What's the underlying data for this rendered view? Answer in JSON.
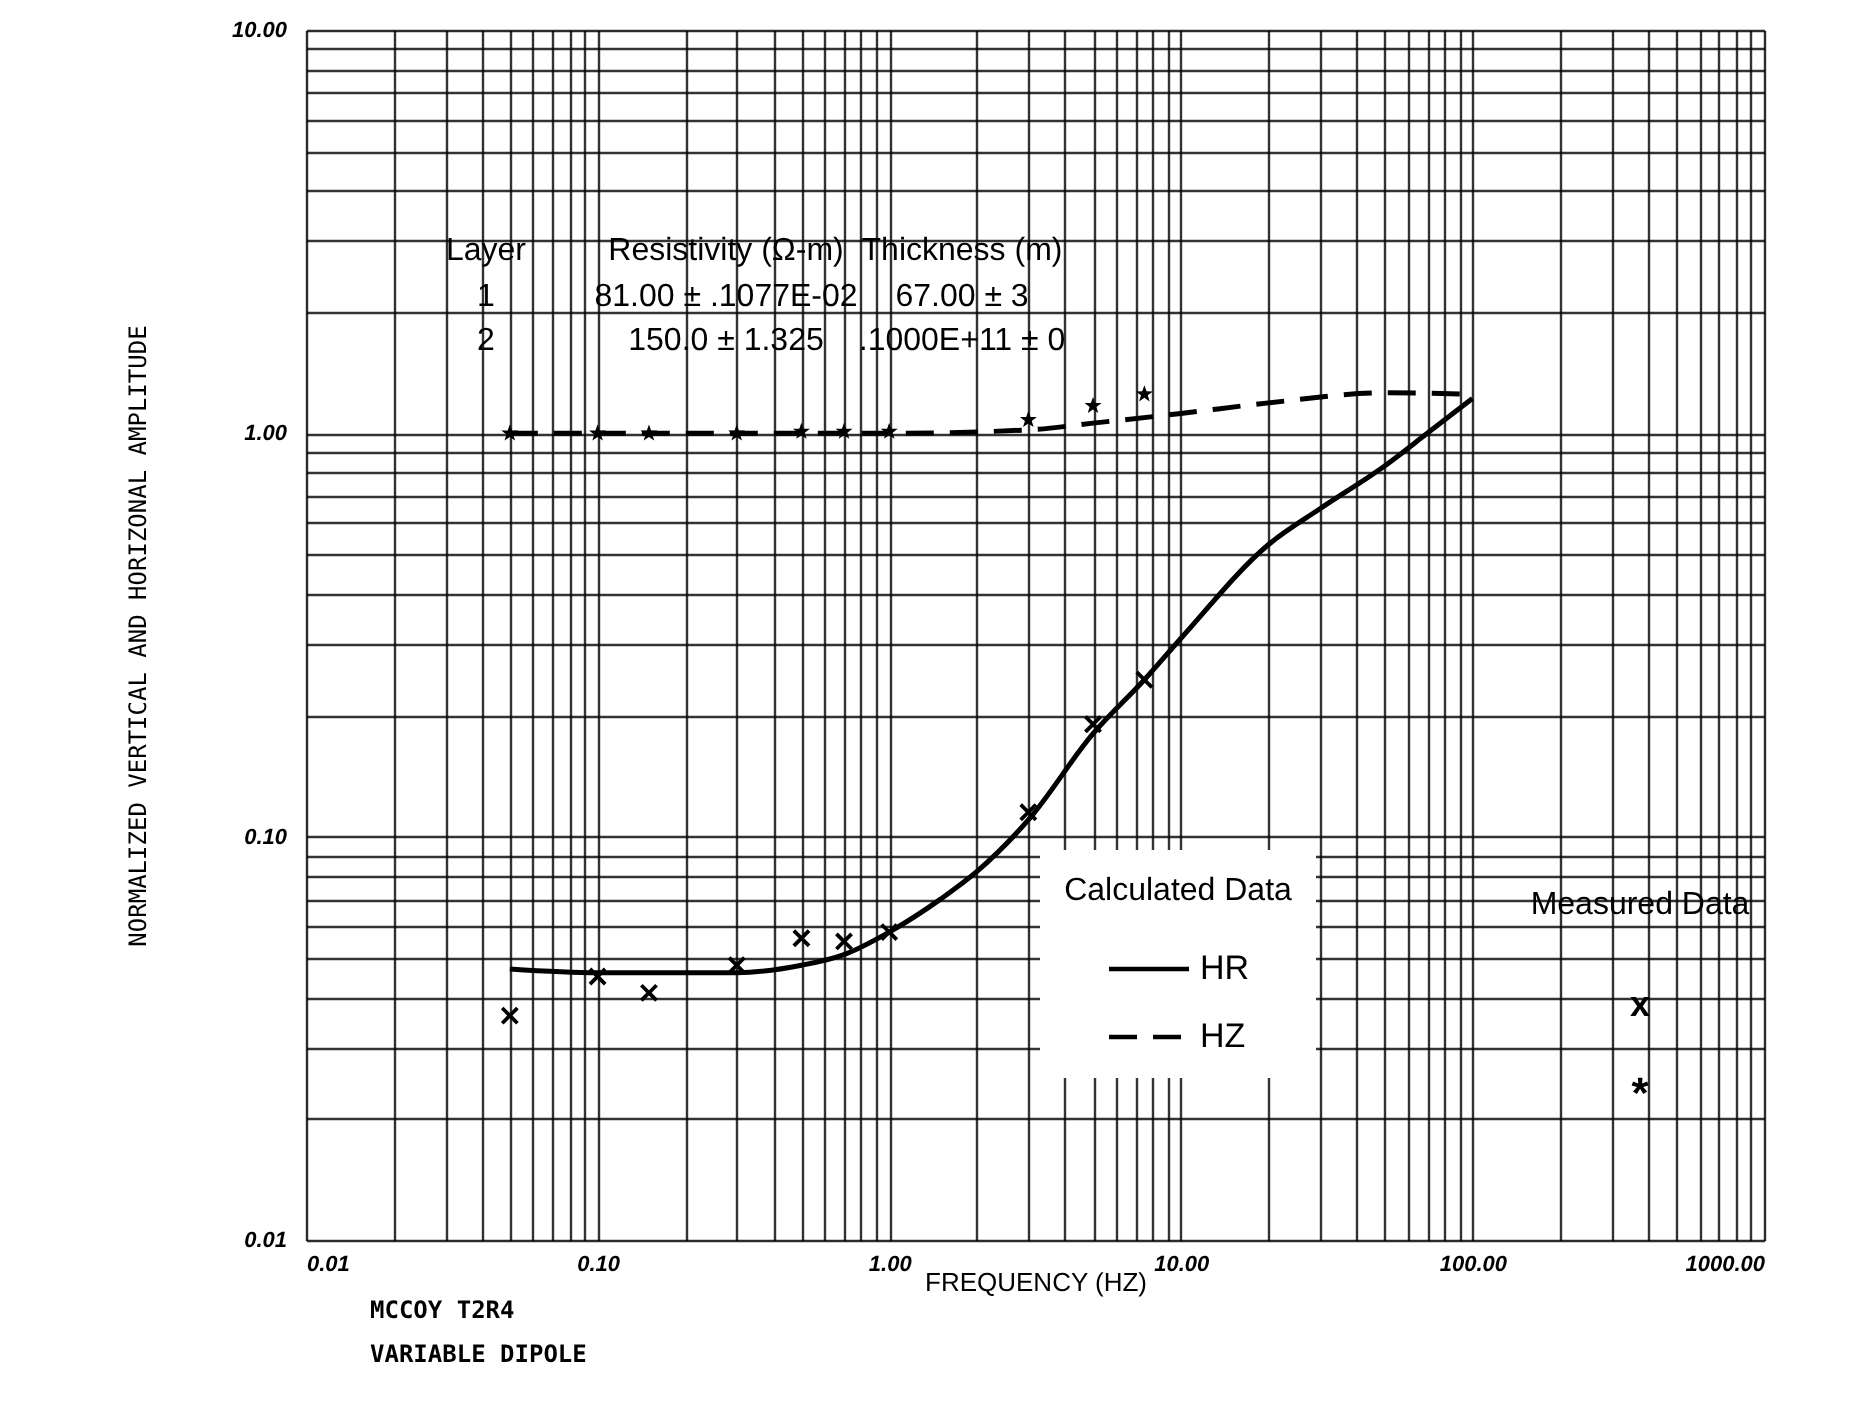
{
  "chart_data": {
    "type": "line",
    "xlabel": "FREQUENCY (HZ)",
    "ylabel": "NORMALIZED VERTICAL AND HORIZONAL AMPLITUDE",
    "legend_title": "Calculated Data",
    "log": "xy",
    "grid": true,
    "legend": "bottom right",
    "xlim": [
      0.01,
      1000
    ],
    "ylim": [
      0.01,
      10
    ],
    "xticks": [
      {
        "value": 0.01,
        "label": "0.01"
      },
      {
        "value": 0.02,
        "label": null
      },
      {
        "value": 0.03,
        "label": null
      },
      {
        "value": 0.04,
        "label": null
      },
      {
        "value": 0.05,
        "label": null
      },
      {
        "value": 0.06,
        "label": null
      },
      {
        "value": 0.07,
        "label": null
      },
      {
        "value": 0.08,
        "label": null
      },
      {
        "value": 0.09,
        "label": null
      },
      {
        "value": 0.1,
        "label": "0.10"
      },
      {
        "value": 0.2,
        "label": null
      },
      {
        "value": 0.3,
        "label": null
      },
      {
        "value": 0.4,
        "label": null
      },
      {
        "value": 0.5,
        "label": null
      },
      {
        "value": 0.6,
        "label": null
      },
      {
        "value": 0.7,
        "label": null
      },
      {
        "value": 0.8,
        "label": null
      },
      {
        "value": 0.9,
        "label": null
      },
      {
        "value": 1,
        "label": "1.00"
      },
      {
        "value": 2,
        "label": null
      },
      {
        "value": 3,
        "label": null
      },
      {
        "value": 4,
        "label": null
      },
      {
        "value": 5,
        "label": null
      },
      {
        "value": 6,
        "label": null
      },
      {
        "value": 7,
        "label": null
      },
      {
        "value": 8,
        "label": null
      },
      {
        "value": 9,
        "label": null
      },
      {
        "value": 10,
        "label": "10.00"
      },
      {
        "value": 20,
        "label": null
      },
      {
        "value": 30,
        "label": null
      },
      {
        "value": 40,
        "label": null
      },
      {
        "value": 50,
        "label": null
      },
      {
        "value": 60,
        "label": null
      },
      {
        "value": 70,
        "label": null
      },
      {
        "value": 80,
        "label": null
      },
      {
        "value": 90,
        "label": null
      },
      {
        "value": 100,
        "label": "100.00"
      },
      {
        "value": 200,
        "label": null
      },
      {
        "value": 300,
        "label": null
      },
      {
        "value": 400,
        "label": null
      },
      {
        "value": 500,
        "label": null
      },
      {
        "value": 600,
        "label": null
      },
      {
        "value": 700,
        "label": null
      },
      {
        "value": 800,
        "label": null
      },
      {
        "value": 900,
        "label": null
      },
      {
        "value": 1000,
        "label": "1000.00"
      }
    ],
    "yticks": [
      {
        "value": 0.01,
        "label": "0.01"
      },
      {
        "value": 0.02,
        "label": null
      },
      {
        "value": 0.03,
        "label": null
      },
      {
        "value": 0.04,
        "label": null
      },
      {
        "value": 0.05,
        "label": null
      },
      {
        "value": 0.06,
        "label": null
      },
      {
        "value": 0.07,
        "label": null
      },
      {
        "value": 0.08,
        "label": null
      },
      {
        "value": 0.09,
        "label": null
      },
      {
        "value": 0.1,
        "label": "0.10"
      },
      {
        "value": 0.2,
        "label": null
      },
      {
        "value": 0.3,
        "label": null
      },
      {
        "value": 0.4,
        "label": null
      },
      {
        "value": 0.5,
        "label": null
      },
      {
        "value": 0.6,
        "label": null
      },
      {
        "value": 0.7,
        "label": null
      },
      {
        "value": 0.8,
        "label": null
      },
      {
        "value": 0.9,
        "label": null
      },
      {
        "value": 1,
        "label": "1.00"
      },
      {
        "value": 2,
        "label": null
      },
      {
        "value": 3,
        "label": null
      },
      {
        "value": 4,
        "label": null
      },
      {
        "value": 5,
        "label": null
      },
      {
        "value": 6,
        "label": null
      },
      {
        "value": 7,
        "label": null
      },
      {
        "value": 8,
        "label": null
      },
      {
        "value": 9,
        "label": null
      },
      {
        "value": 10,
        "label": "10.00"
      }
    ],
    "series": [
      {
        "name": "HR",
        "color": "#000000",
        "line_style": "solid",
        "x": [
          0.05,
          0.1,
          0.2,
          0.3,
          0.5,
          0.7,
          1,
          1.5,
          2,
          3,
          5,
          7.5,
          10,
          20,
          30,
          50,
          70,
          100
        ],
        "values": [
          0.047,
          0.046,
          0.046,
          0.046,
          0.048,
          0.051,
          0.058,
          0.07,
          0.082,
          0.11,
          0.18,
          0.245,
          0.31,
          0.53,
          0.65,
          0.83,
          1.0,
          1.22
        ]
      },
      {
        "name": "HZ",
        "color": "#000000",
        "line_style": "dashed",
        "x": [
          0.05,
          0.1,
          0.3,
          1,
          3,
          5,
          10,
          20,
          50,
          100
        ],
        "values": [
          1.0,
          1.0,
          1.0,
          1.0,
          1.02,
          1.06,
          1.12,
          1.19,
          1.26,
          1.25
        ]
      },
      {
        "type": "scatter",
        "color": "#000000",
        "marker": "cross",
        "x": [
          0.05,
          0.1,
          0.15,
          0.3,
          0.5,
          0.7,
          1,
          3,
          5,
          7.5
        ],
        "values": [
          0.036,
          0.045,
          0.041,
          0.048,
          0.056,
          0.055,
          0.058,
          0.115,
          0.19,
          0.245
        ]
      },
      {
        "type": "scatter",
        "color": "#000000",
        "marker": "star",
        "x": [
          0.05,
          0.1,
          0.15,
          0.3,
          0.5,
          0.7,
          1,
          3,
          5,
          7.5
        ],
        "values": [
          1.0,
          1.0,
          1.0,
          1.0,
          1.01,
          1.01,
          1.01,
          1.08,
          1.17,
          1.25
        ]
      }
    ],
    "annotations": [
      "Layer",
      "Resistivity (Ω-m)",
      "Thickness (m)",
      "1",
      "81.00 ± .1077E-02",
      "67.00 ± 3",
      "2",
      "150.0 ± 1.325",
      ".1000E+11 ± 0",
      "Measured Data",
      "x",
      "*",
      "MCCOY  T2R4",
      "VARIABLE DIPOLE"
    ]
  }
}
